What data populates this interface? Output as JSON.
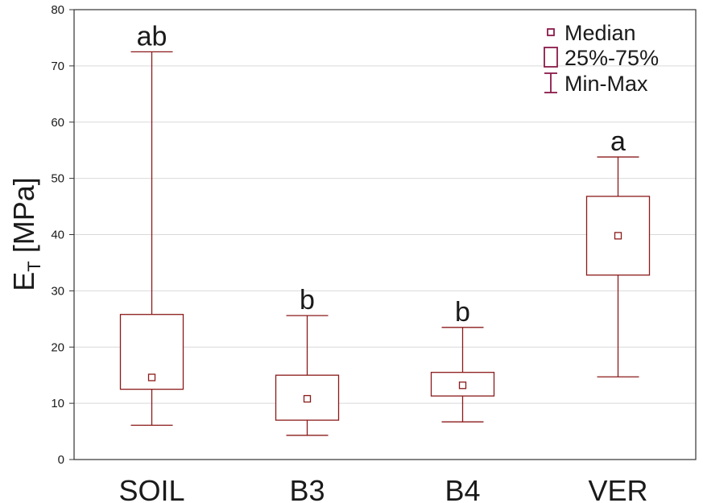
{
  "chart_data": {
    "type": "boxplot",
    "ylabel": {
      "main": "E",
      "subscript": "T",
      "unit": " [MPa]"
    },
    "ylim": [
      0,
      80
    ],
    "yticks": [
      0,
      10,
      20,
      30,
      40,
      50,
      60,
      70,
      80
    ],
    "grid": true,
    "legend_position": "top-right",
    "colors": {
      "box": "#8b1a1a",
      "legend_marker": "#8b1a4a",
      "grid": "#d9d9d9",
      "axis": "#333333"
    },
    "legend": [
      {
        "label": "Median",
        "marker": "median"
      },
      {
        "label": "25%-75%",
        "marker": "box"
      },
      {
        "label": "Min-Max",
        "marker": "whisker"
      }
    ],
    "categories": [
      "SOIL",
      "B3",
      "B4",
      "VER"
    ],
    "groups": [
      "ab",
      "b",
      "b",
      "a"
    ],
    "boxes": [
      {
        "min": 6.1,
        "q1": 12.5,
        "median": 14.6,
        "q3": 25.8,
        "max": 72.5
      },
      {
        "min": 4.3,
        "q1": 7.0,
        "median": 10.8,
        "q3": 15.0,
        "max": 25.6
      },
      {
        "min": 6.7,
        "q1": 11.3,
        "median": 13.2,
        "q3": 15.5,
        "max": 23.5
      },
      {
        "min": 14.7,
        "q1": 32.8,
        "median": 39.8,
        "q3": 46.8,
        "max": 53.8
      }
    ]
  }
}
